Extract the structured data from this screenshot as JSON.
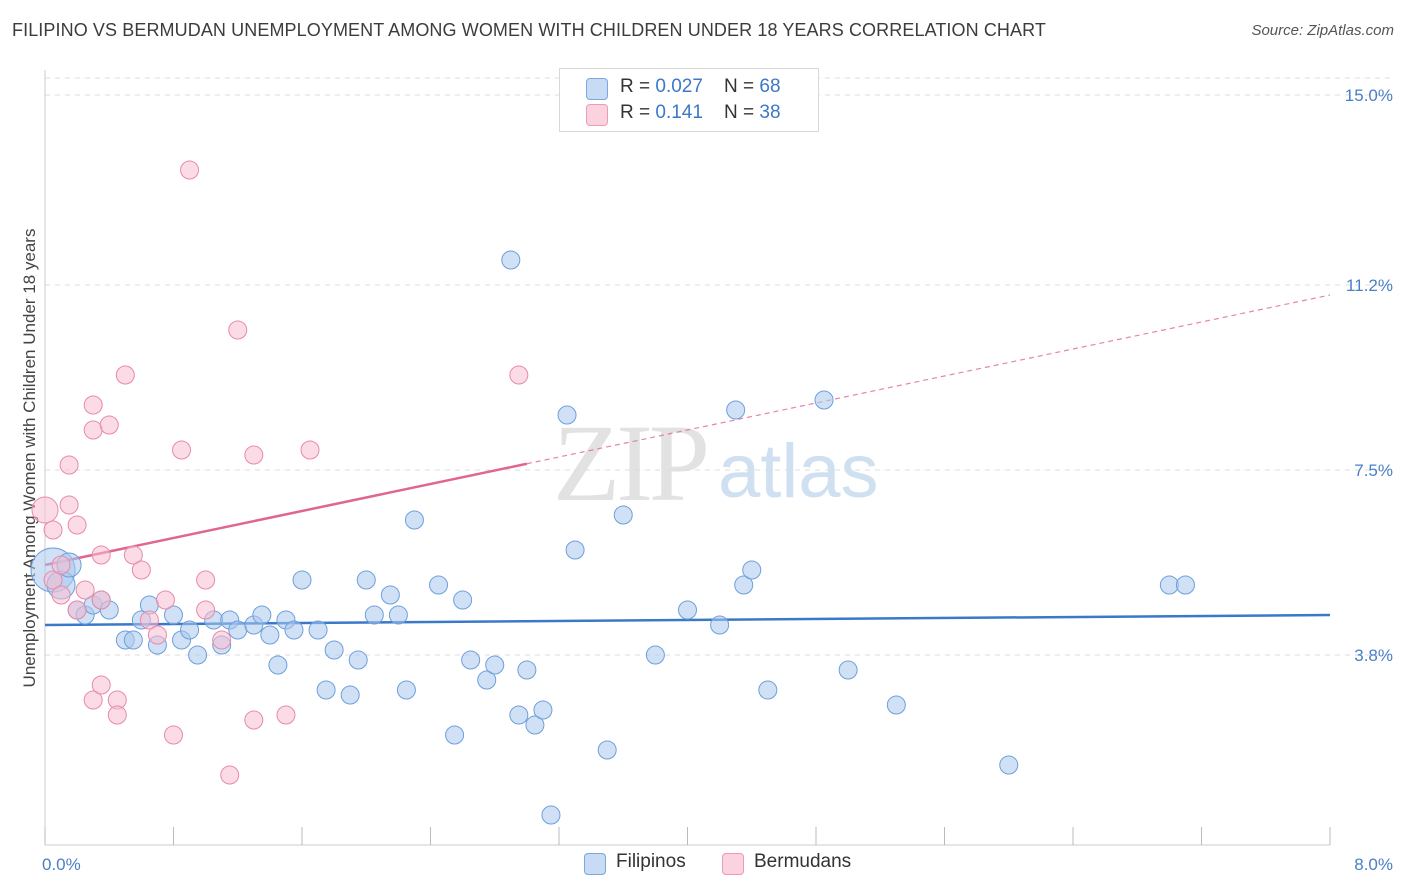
{
  "header": {
    "title": "FILIPINO VS BERMUDAN UNEMPLOYMENT AMONG WOMEN WITH CHILDREN UNDER 18 YEARS CORRELATION CHART",
    "source": "Source: ZipAtlas.com"
  },
  "watermark": {
    "zip": "ZIP",
    "atlas": "atlas"
  },
  "legend": {
    "rows": [
      {
        "r_label": "R = ",
        "r_value": "0.027",
        "n_label": "N = ",
        "n_value": "68",
        "color": "#aac8ef"
      },
      {
        "r_label": "R = ",
        "r_value": " 0.141",
        "n_label": "N = ",
        "n_value": "38",
        "color": "#f7bdd0"
      }
    ]
  },
  "bottom_legend": {
    "filipinos": "Filipinos",
    "bermudans": "Bermudans"
  },
  "chart_data": {
    "type": "scatter",
    "title": "FILIPINO VS BERMUDAN UNEMPLOYMENT AMONG WOMEN WITH CHILDREN UNDER 18 YEARS CORRELATION CHART",
    "xlabel": "",
    "ylabel": "Unemployment Among Women with Children Under 18 years",
    "xlim": [
      0,
      8
    ],
    "ylim": [
      0,
      15.5
    ],
    "x_tick_labels": {
      "min": "0.0%",
      "max": "8.0%"
    },
    "y_ticks": [
      {
        "value": 3.8,
        "label": "3.8%"
      },
      {
        "value": 7.5,
        "label": "7.5%"
      },
      {
        "value": 11.2,
        "label": "11.2%"
      },
      {
        "value": 15.0,
        "label": "15.0%"
      }
    ],
    "series": [
      {
        "name": "Filipinos",
        "color": "#aac8ef",
        "stroke": "#6e9fdc",
        "trend": {
          "x0": 0.0,
          "y0": 4.4,
          "x1": 8.0,
          "y1": 4.6,
          "color": "#3a78c9",
          "dashed_from": null
        },
        "points": [
          [
            0.05,
            5.5,
            22
          ],
          [
            0.1,
            5.2,
            14
          ],
          [
            0.15,
            5.6,
            12
          ],
          [
            0.2,
            4.7,
            9
          ],
          [
            0.25,
            4.6,
            9
          ],
          [
            0.3,
            4.8,
            9
          ],
          [
            0.35,
            4.9,
            9
          ],
          [
            0.4,
            4.7,
            9
          ],
          [
            0.5,
            4.1,
            9
          ],
          [
            0.55,
            4.1,
            9
          ],
          [
            0.6,
            4.5,
            9
          ],
          [
            0.65,
            4.8,
            9
          ],
          [
            0.7,
            4.0,
            9
          ],
          [
            0.8,
            4.6,
            9
          ],
          [
            0.85,
            4.1,
            9
          ],
          [
            0.9,
            4.3,
            9
          ],
          [
            0.95,
            3.8,
            9
          ],
          [
            1.05,
            4.5,
            9
          ],
          [
            1.1,
            4.0,
            9
          ],
          [
            1.15,
            4.5,
            9
          ],
          [
            1.2,
            4.3,
            9
          ],
          [
            1.3,
            4.4,
            9
          ],
          [
            1.35,
            4.6,
            9
          ],
          [
            1.4,
            4.2,
            9
          ],
          [
            1.45,
            3.6,
            9
          ],
          [
            1.5,
            4.5,
            9
          ],
          [
            1.55,
            4.3,
            9
          ],
          [
            1.6,
            5.3,
            9
          ],
          [
            1.7,
            4.3,
            9
          ],
          [
            1.75,
            3.1,
            9
          ],
          [
            1.8,
            3.9,
            9
          ],
          [
            1.9,
            3.0,
            9
          ],
          [
            1.95,
            3.7,
            9
          ],
          [
            2.0,
            5.3,
            9
          ],
          [
            2.05,
            4.6,
            9
          ],
          [
            2.15,
            5.0,
            9
          ],
          [
            2.2,
            4.6,
            9
          ],
          [
            2.25,
            3.1,
            9
          ],
          [
            2.3,
            6.5,
            9
          ],
          [
            2.45,
            5.2,
            9
          ],
          [
            2.55,
            2.2,
            9
          ],
          [
            2.6,
            4.9,
            9
          ],
          [
            2.65,
            3.7,
            9
          ],
          [
            2.75,
            3.3,
            9
          ],
          [
            2.8,
            3.6,
            9
          ],
          [
            2.9,
            11.7,
            9
          ],
          [
            2.95,
            2.6,
            9
          ],
          [
            3.0,
            3.5,
            9
          ],
          [
            3.05,
            2.4,
            9
          ],
          [
            3.1,
            2.7,
            9
          ],
          [
            3.15,
            0.6,
            9
          ],
          [
            3.25,
            8.6,
            9
          ],
          [
            3.3,
            5.9,
            9
          ],
          [
            3.5,
            1.9,
            9
          ],
          [
            3.6,
            6.6,
            9
          ],
          [
            3.8,
            3.8,
            9
          ],
          [
            4.0,
            4.7,
            9
          ],
          [
            4.2,
            4.4,
            9
          ],
          [
            4.3,
            8.7,
            9
          ],
          [
            4.35,
            5.2,
            9
          ],
          [
            4.4,
            5.5,
            9
          ],
          [
            4.5,
            3.1,
            9
          ],
          [
            4.85,
            8.9,
            9
          ],
          [
            5.0,
            3.5,
            9
          ],
          [
            5.3,
            2.8,
            9
          ],
          [
            6.0,
            1.6,
            9
          ],
          [
            7.0,
            5.2,
            9
          ],
          [
            7.1,
            5.2,
            9
          ]
        ]
      },
      {
        "name": "Bermudans",
        "color": "#f7bdd0",
        "stroke": "#e88aab",
        "trend": {
          "x0": 0.0,
          "y0": 5.6,
          "x1": 8.0,
          "y1": 11.0,
          "color": "#e0668f",
          "dashed_from": 3.0
        },
        "points": [
          [
            0.0,
            6.7,
            13
          ],
          [
            0.05,
            6.3,
            9
          ],
          [
            0.05,
            5.3,
            9
          ],
          [
            0.1,
            5.6,
            9
          ],
          [
            0.1,
            5.0,
            9
          ],
          [
            0.15,
            6.8,
            9
          ],
          [
            0.15,
            7.6,
            9
          ],
          [
            0.2,
            6.4,
            9
          ],
          [
            0.2,
            4.7,
            9
          ],
          [
            0.25,
            5.1,
            9
          ],
          [
            0.3,
            8.8,
            9
          ],
          [
            0.3,
            2.9,
            9
          ],
          [
            0.3,
            8.3,
            9
          ],
          [
            0.35,
            5.8,
            9
          ],
          [
            0.35,
            4.9,
            9
          ],
          [
            0.35,
            3.2,
            9
          ],
          [
            0.4,
            8.4,
            9
          ],
          [
            0.45,
            2.9,
            9
          ],
          [
            0.45,
            2.6,
            9
          ],
          [
            0.5,
            9.4,
            9
          ],
          [
            0.55,
            5.8,
            9
          ],
          [
            0.6,
            5.5,
            9
          ],
          [
            0.65,
            4.5,
            9
          ],
          [
            0.7,
            4.2,
            9
          ],
          [
            0.75,
            4.9,
            9
          ],
          [
            0.8,
            2.2,
            9
          ],
          [
            0.85,
            7.9,
            9
          ],
          [
            0.9,
            13.5,
            9
          ],
          [
            1.0,
            4.7,
            9
          ],
          [
            1.0,
            5.3,
            9
          ],
          [
            1.1,
            4.1,
            9
          ],
          [
            1.15,
            1.4,
            9
          ],
          [
            1.2,
            10.3,
            9
          ],
          [
            1.3,
            7.8,
            9
          ],
          [
            1.3,
            2.5,
            9
          ],
          [
            1.5,
            2.6,
            9
          ],
          [
            1.65,
            7.9,
            9
          ],
          [
            2.95,
            9.4,
            9
          ]
        ]
      }
    ]
  }
}
